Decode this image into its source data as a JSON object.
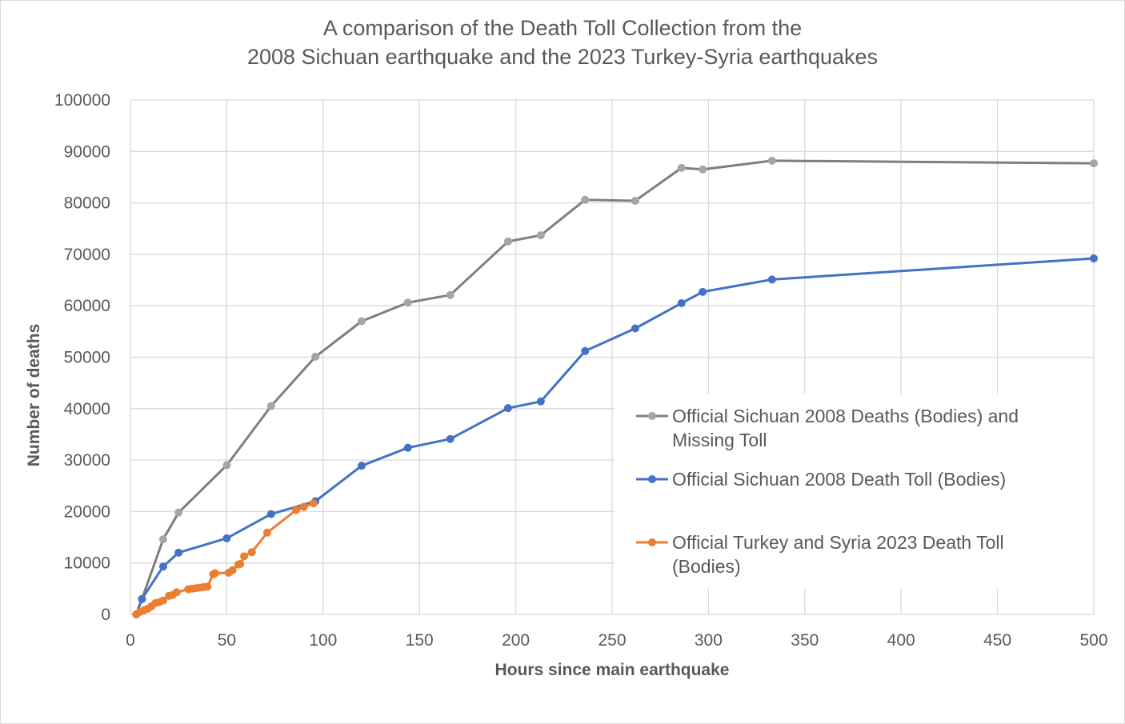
{
  "chart_data": {
    "type": "line",
    "title_lines": [
      "A comparison of the Death Toll Collection from the",
      "2008 Sichuan earthquake and the 2023 Turkey-Syria earthquakes"
    ],
    "xlabel": "Hours since main earthquake",
    "ylabel": "Number of deaths",
    "xlim": [
      0,
      500
    ],
    "ylim": [
      0,
      100000
    ],
    "x_ticks": [
      0,
      50,
      100,
      150,
      200,
      250,
      300,
      350,
      400,
      450,
      500
    ],
    "y_ticks": [
      0,
      10000,
      20000,
      30000,
      40000,
      50000,
      60000,
      70000,
      80000,
      90000,
      100000
    ],
    "grid": true,
    "legend_position": "right",
    "series": [
      {
        "name": "Official Sichuan 2008 Deaths (Bodies) and Missing Toll",
        "legend_lines": [
          "Official Sichuan 2008 Deaths (Bodies) and",
          "Missing Toll"
        ],
        "color": "#a5a5a5",
        "line_color": "#7f7f7f",
        "points": [
          [
            3,
            0
          ],
          [
            6,
            3000
          ],
          [
            17,
            14600
          ],
          [
            25,
            19800
          ],
          [
            50,
            29000
          ],
          [
            73,
            40500
          ],
          [
            96,
            50100
          ],
          [
            120,
            57000
          ],
          [
            144,
            60600
          ],
          [
            166,
            62100
          ],
          [
            196,
            72500
          ],
          [
            213,
            73700
          ],
          [
            236,
            80600
          ],
          [
            262,
            80400
          ],
          [
            286,
            86800
          ],
          [
            297,
            86500
          ],
          [
            333,
            88200
          ],
          [
            500,
            87700
          ]
        ]
      },
      {
        "name": "Official Sichuan 2008 Death Toll (Bodies)",
        "legend_lines": [
          "Official Sichuan 2008 Death Toll (Bodies)"
        ],
        "color": "#4472c4",
        "line_color": "#4472c4",
        "points": [
          [
            3,
            0
          ],
          [
            6,
            3000
          ],
          [
            17,
            9300
          ],
          [
            25,
            12000
          ],
          [
            50,
            14800
          ],
          [
            73,
            19500
          ],
          [
            96,
            22000
          ],
          [
            120,
            28900
          ],
          [
            144,
            32400
          ],
          [
            166,
            34100
          ],
          [
            196,
            40100
          ],
          [
            213,
            41400
          ],
          [
            236,
            51200
          ],
          [
            262,
            55600
          ],
          [
            286,
            60500
          ],
          [
            297,
            62700
          ],
          [
            333,
            65100
          ],
          [
            500,
            69200
          ]
        ]
      },
      {
        "name": "Official Turkey and Syria 2023 Death Toll (Bodies)",
        "legend_lines": [
          "Official Turkey and Syria 2023 Death Toll",
          "(Bodies)"
        ],
        "color": "#ed7d31",
        "line_color": "#ed7d31",
        "points": [
          [
            3,
            0
          ],
          [
            5,
            500
          ],
          [
            7,
            800
          ],
          [
            9,
            1100
          ],
          [
            11,
            1600
          ],
          [
            13,
            2200
          ],
          [
            15,
            2400
          ],
          [
            17,
            2700
          ],
          [
            20,
            3600
          ],
          [
            22,
            3800
          ],
          [
            24,
            4300
          ],
          [
            30,
            4900
          ],
          [
            32,
            5000
          ],
          [
            34,
            5100
          ],
          [
            36,
            5200
          ],
          [
            38,
            5300
          ],
          [
            40,
            5400
          ],
          [
            43,
            7800
          ],
          [
            44,
            8000
          ],
          [
            51,
            8100
          ],
          [
            53,
            8600
          ],
          [
            56,
            9700
          ],
          [
            57,
            9800
          ],
          [
            59,
            11300
          ],
          [
            63,
            12100
          ],
          [
            71,
            15900
          ],
          [
            86,
            20300
          ],
          [
            90,
            20900
          ],
          [
            95,
            21600
          ]
        ]
      }
    ]
  }
}
